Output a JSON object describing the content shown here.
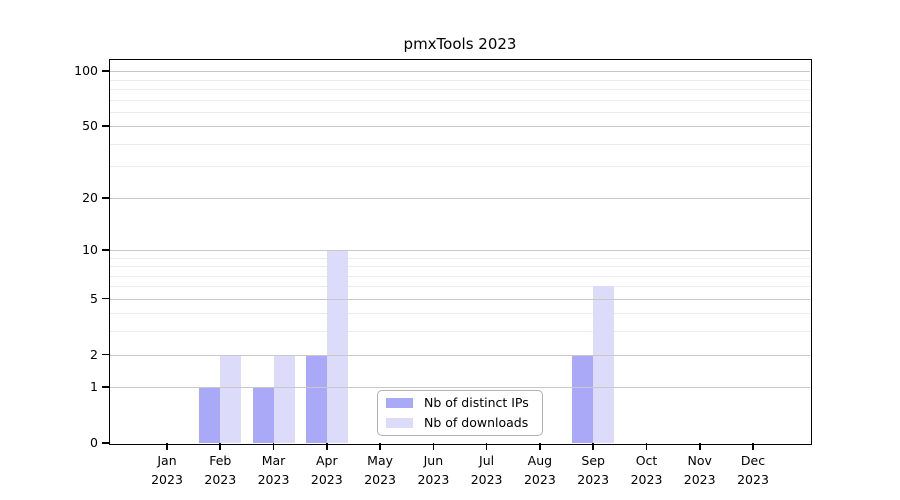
{
  "chart_data": {
    "type": "bar",
    "title": "pmxTools 2023",
    "categories": [
      {
        "month": "Jan",
        "year": "2023"
      },
      {
        "month": "Feb",
        "year": "2023"
      },
      {
        "month": "Mar",
        "year": "2023"
      },
      {
        "month": "Apr",
        "year": "2023"
      },
      {
        "month": "May",
        "year": "2023"
      },
      {
        "month": "Jun",
        "year": "2023"
      },
      {
        "month": "Jul",
        "year": "2023"
      },
      {
        "month": "Aug",
        "year": "2023"
      },
      {
        "month": "Sep",
        "year": "2023"
      },
      {
        "month": "Oct",
        "year": "2023"
      },
      {
        "month": "Nov",
        "year": "2023"
      },
      {
        "month": "Dec",
        "year": "2023"
      }
    ],
    "series": [
      {
        "name": "Nb of distinct IPs",
        "color": "#a9a9f7",
        "values": [
          0,
          1,
          1,
          2,
          0,
          0,
          0,
          0,
          2,
          0,
          0,
          0
        ]
      },
      {
        "name": "Nb of downloads",
        "color": "#dcdcfa",
        "values": [
          0,
          2,
          2,
          10,
          0,
          0,
          0,
          0,
          6,
          0,
          0,
          0
        ]
      }
    ],
    "y_axis": {
      "scale": "log1p",
      "ticks": [
        0,
        1,
        2,
        5,
        10,
        20,
        50,
        100
      ],
      "minor_gridlines": [
        3,
        4,
        6,
        7,
        8,
        9,
        30,
        40,
        60,
        70,
        80,
        90
      ],
      "ylim": [
        0,
        115
      ]
    },
    "grid": "horizontal",
    "legend_position": "inside-bottom-center",
    "colors": {
      "major_grid": "#c8c8c8",
      "minor_grid": "#ececec",
      "axis": "#000000",
      "background": "#ffffff"
    }
  }
}
